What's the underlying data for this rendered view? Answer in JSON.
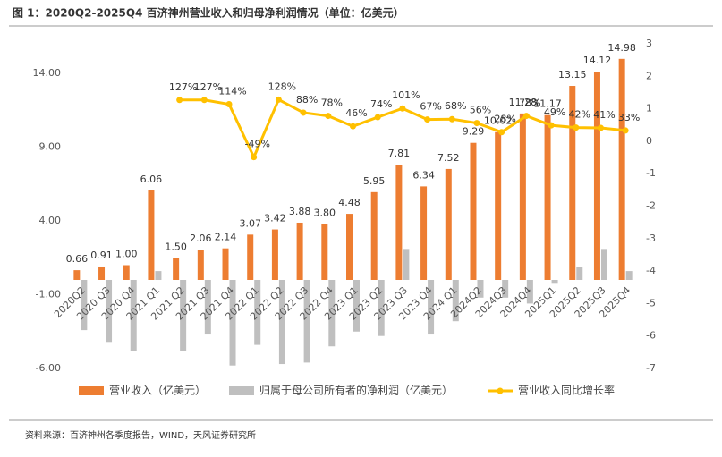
{
  "chart_data": {
    "type": "combo",
    "title": "图 1：2020Q2-2025Q4 百济神州营业收入和归母净利润情况（单位：亿美元）",
    "source": "资料来源：百济神州各季度报告，WIND，天风证券研究所",
    "categories": [
      "2020Q2",
      "2020 Q3",
      "2020 Q4",
      "2021 Q1",
      "2021 Q2",
      "2021 Q3",
      "2021 Q4",
      "2022 Q1",
      "2022 Q2",
      "2022 Q3",
      "2022 Q4",
      "2023 Q1",
      "2023 Q2",
      "2023 Q3",
      "2023 Q4",
      "2024 Q1",
      "2024Q2",
      "2024Q3",
      "2024Q4",
      "2025Q1",
      "2025Q2",
      "2025Q3",
      "2025Q4"
    ],
    "series": [
      {
        "name": "营业收入（亿美元）",
        "type": "bar",
        "color": "#ED7D31",
        "values": [
          0.66,
          0.91,
          1.0,
          6.06,
          1.5,
          2.06,
          2.14,
          3.07,
          3.42,
          3.88,
          3.8,
          4.48,
          5.95,
          7.81,
          6.34,
          7.52,
          9.29,
          10.02,
          11.28,
          11.17,
          13.15,
          14.12,
          14.98
        ],
        "value_labels": [
          "0.66",
          "0.91",
          "1.00",
          "6.06",
          "1.50",
          "2.06",
          "2.14",
          "3.07",
          "3.42",
          "3.88",
          "3.80",
          "4.48",
          "5.95",
          "7.81",
          "6.34",
          "7.52",
          "9.29",
          "10.02",
          "11.28",
          "11.17",
          "13.15",
          "14.12",
          "14.98"
        ]
      },
      {
        "name": "归属于母公司所有者的净利润（亿美元）",
        "type": "bar",
        "color": "#BFBFBF",
        "values": [
          -3.4,
          -4.2,
          -4.8,
          0.6,
          -4.8,
          -3.7,
          -5.8,
          -4.4,
          -5.7,
          -5.6,
          -4.5,
          -3.5,
          -3.8,
          2.1,
          -3.7,
          -2.8,
          -1.2,
          -1.2,
          -1.6,
          -0.2,
          0.9,
          2.1,
          0.6
        ]
      },
      {
        "name": "营业收入同比增长率",
        "type": "line",
        "axis": "y2",
        "color": "#FFC000",
        "values": [
          null,
          null,
          null,
          null,
          1.27,
          1.27,
          1.14,
          -0.49,
          1.28,
          0.88,
          0.78,
          0.46,
          0.74,
          1.01,
          0.67,
          0.68,
          0.56,
          0.28,
          0.78,
          0.49,
          0.42,
          0.41,
          0.33
        ],
        "value_labels": [
          null,
          null,
          null,
          null,
          "127%",
          "127%",
          "114%",
          "-49%",
          "128%",
          "88%",
          "78%",
          "46%",
          "74%",
          "101%",
          "67%",
          "68%",
          "56%",
          "28%",
          "78%",
          "49%",
          "42%",
          "41%",
          "33%"
        ]
      }
    ],
    "ylim": [
      -6,
      16
    ],
    "yticks": [
      {
        "value": -6,
        "label": "-6.00"
      },
      {
        "value": -1,
        "label": "-1.00"
      },
      {
        "value": 4,
        "label": "4.00"
      },
      {
        "value": 9,
        "label": "9.00"
      },
      {
        "value": 14,
        "label": "14.00"
      }
    ],
    "y2lim": [
      -7,
      3
    ],
    "y2ticks": [
      -7,
      -6,
      -5,
      -4,
      -3,
      -2,
      -1,
      0,
      1,
      2,
      3
    ],
    "grid": false
  }
}
